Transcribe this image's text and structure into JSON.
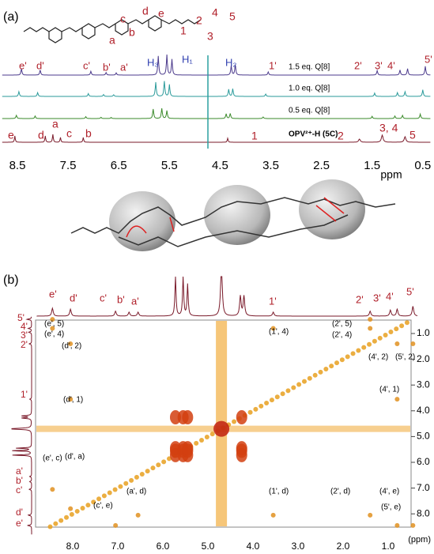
{
  "panel_a": {
    "label": "(a)",
    "structure_labels": [
      "a",
      "b",
      "c",
      "d",
      "e",
      "1",
      "2",
      "3",
      "4",
      "5"
    ],
    "spectra": [
      {
        "legend": "1.5 eq. Q[8]",
        "peak_labels": [
          "e'",
          "d'",
          "c'",
          "b'",
          "a'",
          "H₃",
          "H₁",
          "H₂",
          "1'",
          "2'",
          "3'",
          "4'",
          "5'"
        ]
      },
      {
        "legend": "1.0 eq. Q[8]"
      },
      {
        "legend": "0.5 eq. Q[8]"
      },
      {
        "legend": "OPV²⁺-H (5C)",
        "peak_labels": [
          "e",
          "d",
          "a",
          "c",
          "b",
          "1",
          "2",
          "3, 4",
          "5"
        ]
      }
    ],
    "x_ticks": [
      "8.5",
      "7.5",
      "6.5",
      "5.5",
      "4.5",
      "3.5",
      "2.5",
      "1.5",
      "0.5"
    ],
    "x_axis_label": "ppm"
  },
  "panel_b": {
    "label": "(b)",
    "top_labels": [
      "e'",
      "d'",
      "c'",
      "b'",
      "a'",
      "1'",
      "2'",
      "3'",
      "4'",
      "5'"
    ],
    "left_labels": [
      "5'",
      "4'",
      "3'",
      "2'",
      "1'",
      "a'",
      "b'",
      "c'",
      "d'",
      "e'"
    ],
    "cross_peak_labels": [
      "(e', 5)",
      "(e', 4)",
      "(d', 2)",
      "(d', 1)",
      "(e', c)",
      "(d', a)",
      "(c', e)",
      "(a', d)",
      "(1', 4)",
      "(1', d)",
      "(2', 5)",
      "(2', 4)",
      "(4', 2)",
      "(5', 2)",
      "(4', 1)",
      "(2', d)",
      "(4', e)",
      "(5', e)"
    ],
    "x_ticks": [
      "8.0",
      "7.0",
      "6.0",
      "5.0",
      "4.0",
      "3.0",
      "2.0",
      "1.0"
    ],
    "x_axis_label": "(ppm)",
    "y_ticks": [
      "1.0",
      "2.0",
      "3.0",
      "4.0",
      "5.0",
      "6.0",
      "7.0",
      "8.0"
    ]
  }
}
